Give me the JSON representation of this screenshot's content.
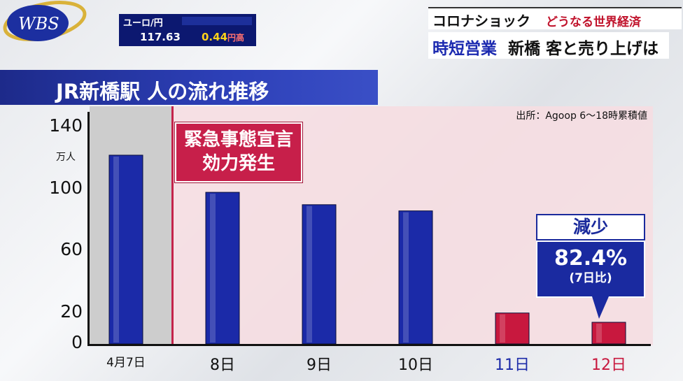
{
  "ticker": {
    "pair": "ユーロ/円",
    "rate": "117.63",
    "change": "0.44",
    "change_unit": "円高"
  },
  "logo": {
    "text": "WBS"
  },
  "headline": {
    "series": "コロナショック",
    "series_sub": "どうなる世界経済",
    "topic": "時短営業",
    "detail": "新橋 客と売り上げは"
  },
  "chart_data": {
    "type": "bar",
    "title": "JR新橋駅 人の流れ推移",
    "source": "出所：Agoop 6～18時累積値",
    "ylabel": "万人",
    "ylim": [
      0,
      150
    ],
    "yticks": [
      "140",
      "100",
      "60",
      "20",
      "0"
    ],
    "ytick_values": [
      140,
      100,
      60,
      20,
      0
    ],
    "categories": [
      "4月7日",
      "8日",
      "9日",
      "10日",
      "11日",
      "12日"
    ],
    "values": [
      122,
      98,
      90,
      86,
      20,
      14
    ],
    "bar_colors": [
      "#1b2aa8",
      "#1b2aa8",
      "#1b2aa8",
      "#1b2aa8",
      "#c8183e",
      "#c8183e"
    ],
    "label_colors": [
      "#111111",
      "#111111",
      "#111111",
      "#111111",
      "#1b2aa8",
      "#c8183e"
    ],
    "annotation_event": [
      "緊急事態宣言",
      "効力発生"
    ],
    "callout": {
      "label": "減少",
      "value": "82.4%",
      "note": "(7日比)"
    }
  }
}
